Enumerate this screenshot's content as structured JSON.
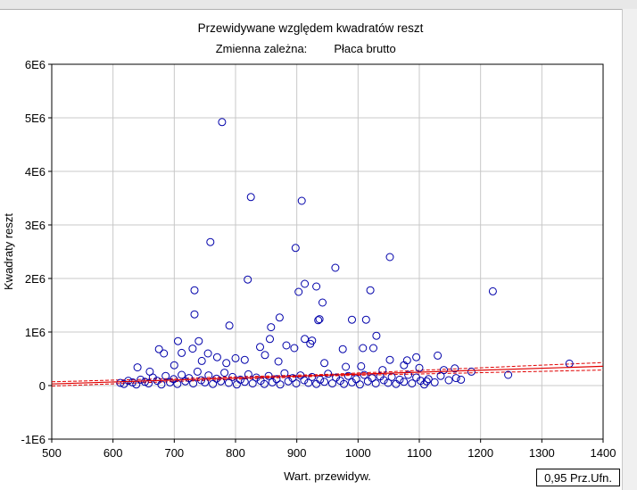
{
  "window": {
    "tab_label": ""
  },
  "chart_data": {
    "type": "scatter",
    "title": "Przewidywane względem kwadratów reszt",
    "subtitle_label": "Zmienna zależna:",
    "subtitle_value": "Płaca brutto",
    "xlabel": "Wart. przewidyw.",
    "ylabel": "Kwadraty reszt",
    "xlim": [
      500,
      1400
    ],
    "ylim": [
      -1000000,
      6000000
    ],
    "grid": true,
    "x_ticks": [
      500,
      600,
      700,
      800,
      900,
      1000,
      1100,
      1200,
      1300,
      1400
    ],
    "x_tick_labels": [
      "500",
      "600",
      "700",
      "800",
      "900",
      "1000",
      "1100",
      "1200",
      "1300",
      "1400"
    ],
    "y_ticks": [
      -1000000,
      0,
      1000000,
      2000000,
      3000000,
      4000000,
      5000000,
      6000000
    ],
    "y_tick_labels": [
      "-1E6",
      "0",
      "1E6",
      "2E6",
      "3E6",
      "4E6",
      "5E6",
      "6E6"
    ],
    "marker_color": "#0000aa",
    "fit_line_color": "#e00000",
    "regression": {
      "x_start": 500,
      "y_start": 30000,
      "x_end": 1400,
      "y_end": 360000
    },
    "confidence_band": {
      "level": "0,95 Prz.Ufn.",
      "half_width_start": 40000,
      "half_width_mid": 15000,
      "half_width_end": 70000
    },
    "legend_label": "0,95 Prz.Ufn.",
    "legend_position": "bottom-right",
    "points": [
      [
        778,
        4920000
      ],
      [
        825,
        3520000
      ],
      [
        908,
        3450000
      ],
      [
        759,
        2680000
      ],
      [
        898,
        2570000
      ],
      [
        1052,
        2400000
      ],
      [
        963,
        2200000
      ],
      [
        820,
        1980000
      ],
      [
        913,
        1900000
      ],
      [
        932,
        1850000
      ],
      [
        1220,
        1760000
      ],
      [
        733,
        1780000
      ],
      [
        903,
        1750000
      ],
      [
        1020,
        1780000
      ],
      [
        942,
        1550000
      ],
      [
        733,
        1330000
      ],
      [
        872,
        1270000
      ],
      [
        937,
        1240000
      ],
      [
        935,
        1220000
      ],
      [
        990,
        1230000
      ],
      [
        1013,
        1230000
      ],
      [
        790,
        1120000
      ],
      [
        858,
        1090000
      ],
      [
        1030,
        930000
      ],
      [
        913,
        870000
      ],
      [
        925,
        840000
      ],
      [
        706,
        830000
      ],
      [
        740,
        830000
      ],
      [
        856,
        870000
      ],
      [
        922,
        780000
      ],
      [
        883,
        750000
      ],
      [
        896,
        700000
      ],
      [
        1008,
        700000
      ],
      [
        1025,
        700000
      ],
      [
        675,
        680000
      ],
      [
        730,
        690000
      ],
      [
        840,
        720000
      ],
      [
        683,
        600000
      ],
      [
        712,
        610000
      ],
      [
        755,
        600000
      ],
      [
        770,
        530000
      ],
      [
        800,
        510000
      ],
      [
        848,
        570000
      ],
      [
        975,
        680000
      ],
      [
        1130,
        560000
      ],
      [
        1095,
        530000
      ],
      [
        1052,
        480000
      ],
      [
        1080,
        470000
      ],
      [
        1005,
        360000
      ],
      [
        1158,
        320000
      ],
      [
        1345,
        410000
      ],
      [
        1245,
        200000
      ],
      [
        1185,
        260000
      ],
      [
        1140,
        290000
      ],
      [
        1100,
        330000
      ],
      [
        640,
        340000
      ],
      [
        660,
        260000
      ],
      [
        700,
        380000
      ],
      [
        745,
        460000
      ],
      [
        785,
        420000
      ],
      [
        815,
        480000
      ],
      [
        870,
        450000
      ],
      [
        945,
        420000
      ],
      [
        980,
        350000
      ],
      [
        1040,
        290000
      ],
      [
        1075,
        380000
      ],
      [
        1168,
        110000
      ],
      [
        1112,
        80000
      ],
      [
        612,
        50000
      ],
      [
        618,
        30000
      ],
      [
        625,
        90000
      ],
      [
        632,
        60000
      ],
      [
        638,
        20000
      ],
      [
        645,
        110000
      ],
      [
        652,
        70000
      ],
      [
        658,
        40000
      ],
      [
        665,
        150000
      ],
      [
        672,
        90000
      ],
      [
        679,
        20000
      ],
      [
        686,
        180000
      ],
      [
        693,
        60000
      ],
      [
        699,
        120000
      ],
      [
        705,
        30000
      ],
      [
        712,
        200000
      ],
      [
        718,
        80000
      ],
      [
        724,
        140000
      ],
      [
        731,
        40000
      ],
      [
        738,
        260000
      ],
      [
        744,
        100000
      ],
      [
        750,
        60000
      ],
      [
        756,
        190000
      ],
      [
        763,
        30000
      ],
      [
        769,
        130000
      ],
      [
        776,
        80000
      ],
      [
        782,
        240000
      ],
      [
        789,
        50000
      ],
      [
        795,
        160000
      ],
      [
        802,
        20000
      ],
      [
        808,
        110000
      ],
      [
        815,
        70000
      ],
      [
        821,
        210000
      ],
      [
        828,
        40000
      ],
      [
        834,
        150000
      ],
      [
        841,
        90000
      ],
      [
        847,
        30000
      ],
      [
        854,
        180000
      ],
      [
        860,
        60000
      ],
      [
        867,
        120000
      ],
      [
        873,
        20000
      ],
      [
        880,
        230000
      ],
      [
        886,
        80000
      ],
      [
        893,
        140000
      ],
      [
        899,
        40000
      ],
      [
        906,
        190000
      ],
      [
        912,
        100000
      ],
      [
        919,
        50000
      ],
      [
        925,
        160000
      ],
      [
        932,
        30000
      ],
      [
        938,
        110000
      ],
      [
        945,
        70000
      ],
      [
        951,
        220000
      ],
      [
        958,
        40000
      ],
      [
        964,
        150000
      ],
      [
        971,
        90000
      ],
      [
        977,
        30000
      ],
      [
        984,
        180000
      ],
      [
        990,
        60000
      ],
      [
        997,
        120000
      ],
      [
        1003,
        20000
      ],
      [
        1010,
        200000
      ],
      [
        1016,
        80000
      ],
      [
        1023,
        140000
      ],
      [
        1029,
        40000
      ],
      [
        1036,
        170000
      ],
      [
        1042,
        100000
      ],
      [
        1049,
        50000
      ],
      [
        1055,
        160000
      ],
      [
        1062,
        30000
      ],
      [
        1068,
        110000
      ],
      [
        1075,
        70000
      ],
      [
        1082,
        200000
      ],
      [
        1088,
        40000
      ],
      [
        1095,
        150000
      ],
      [
        1102,
        90000
      ],
      [
        1108,
        20000
      ],
      [
        1115,
        120000
      ],
      [
        1125,
        60000
      ],
      [
        1135,
        180000
      ],
      [
        1148,
        100000
      ],
      [
        1160,
        140000
      ]
    ]
  }
}
